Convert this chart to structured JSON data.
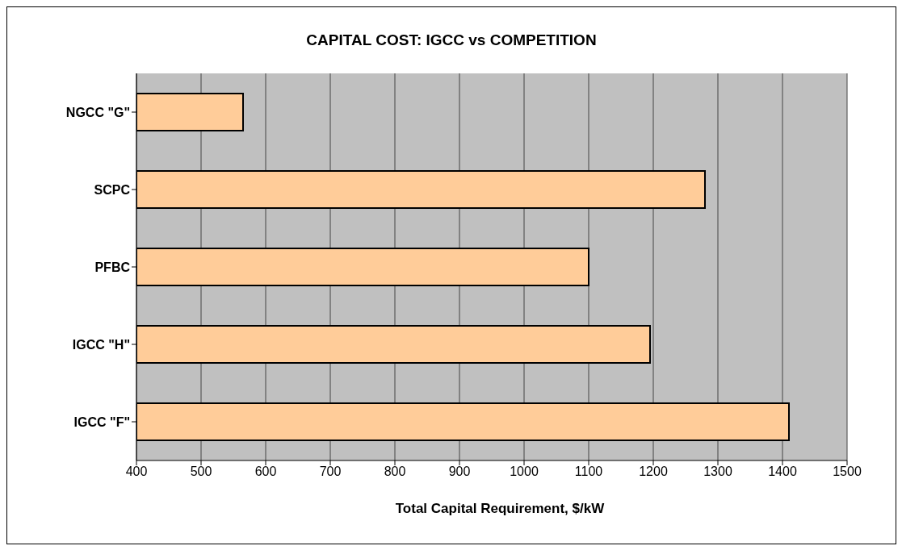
{
  "chart_data": {
    "type": "bar",
    "orientation": "horizontal",
    "title": "CAPITAL COST: IGCC vs COMPETITION",
    "xlabel": "Total Capital Requirement, $/kW",
    "categories": [
      "NGCC \"G\"",
      "SCPC",
      "PFBC",
      "IGCC \"H\"",
      "IGCC \"F\""
    ],
    "values": [
      565,
      1280,
      1100,
      1195,
      1410
    ],
    "color": "#ffcc99",
    "xlim": [
      400,
      1500
    ],
    "xticks": [
      400,
      500,
      600,
      700,
      800,
      900,
      1000,
      1100,
      1200,
      1300,
      1400,
      1500
    ],
    "grid": "x",
    "legend": false
  }
}
